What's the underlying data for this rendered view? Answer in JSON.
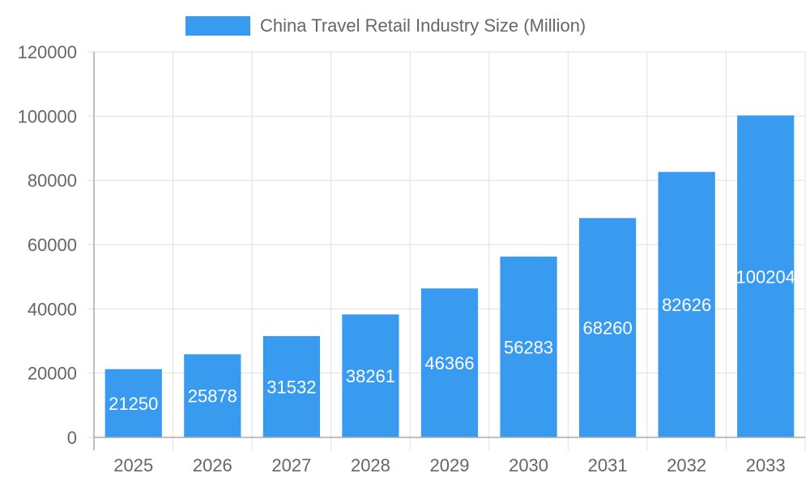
{
  "chart_data": {
    "type": "bar",
    "categories": [
      "2025",
      "2026",
      "2027",
      "2028",
      "2029",
      "2030",
      "2031",
      "2032",
      "2033"
    ],
    "series": [
      {
        "name": "China Travel Retail Industry Size (Million)",
        "values": [
          21250,
          25878,
          31532,
          38261,
          46366,
          56283,
          68260,
          82626,
          100204
        ],
        "color": "#389bf0"
      }
    ],
    "title": "",
    "xlabel": "",
    "ylabel": "",
    "ylim": [
      0,
      120000
    ],
    "yticks": [
      "0",
      "20000",
      "40000",
      "60000",
      "80000",
      "100000",
      "120000"
    ],
    "data_labels": [
      "21250",
      "25878",
      "31532",
      "38261",
      "46366",
      "56283",
      "68260",
      "82626",
      "100204"
    ],
    "grid": true,
    "legend_position": "top"
  }
}
